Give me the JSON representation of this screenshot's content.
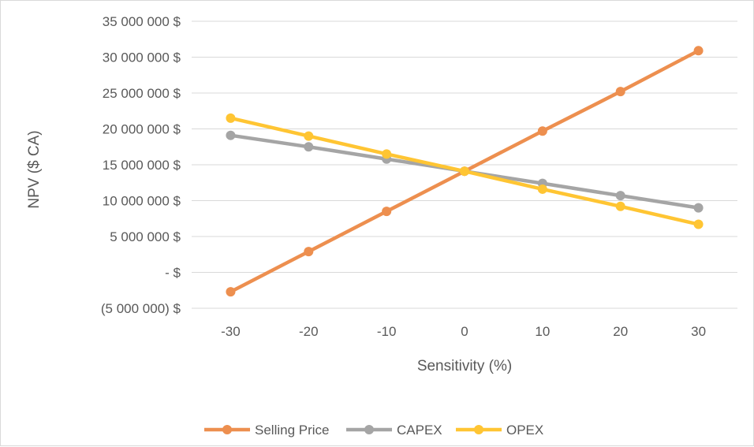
{
  "chart_data": {
    "type": "line",
    "title": "",
    "xlabel": "Sensitivity (%)",
    "ylabel": "NPV ($ CA)",
    "x": [
      -30,
      -20,
      -10,
      0,
      10,
      20,
      30
    ],
    "x_tick_labels": [
      "-30",
      "-20",
      "-10",
      "0",
      "10",
      "20",
      "30"
    ],
    "ylim": [
      -5000000,
      35000000
    ],
    "y_ticks": [
      -5000000,
      0,
      5000000,
      10000000,
      15000000,
      20000000,
      25000000,
      30000000,
      35000000
    ],
    "y_tick_labels": [
      "(5 000 000) $",
      "- $",
      "5 000 000 $",
      "10 000 000 $",
      "15 000 000 $",
      "20 000 000 $",
      "25 000 000 $",
      "30 000 000 $",
      "35 000 000 $"
    ],
    "grid": "horizontal",
    "legend_position": "bottom",
    "series": [
      {
        "name": "Selling Price",
        "color": "#ED8F4F",
        "values": [
          -2700000,
          2900000,
          8500000,
          14100000,
          19700000,
          25200000,
          30900000
        ]
      },
      {
        "name": "CAPEX",
        "color": "#A5A5A5",
        "values": [
          19100000,
          17500000,
          15800000,
          14100000,
          12400000,
          10700000,
          9000000
        ]
      },
      {
        "name": "OPEX",
        "color": "#FFC533",
        "values": [
          21500000,
          19000000,
          16500000,
          14100000,
          11600000,
          9200000,
          6700000
        ]
      }
    ]
  }
}
